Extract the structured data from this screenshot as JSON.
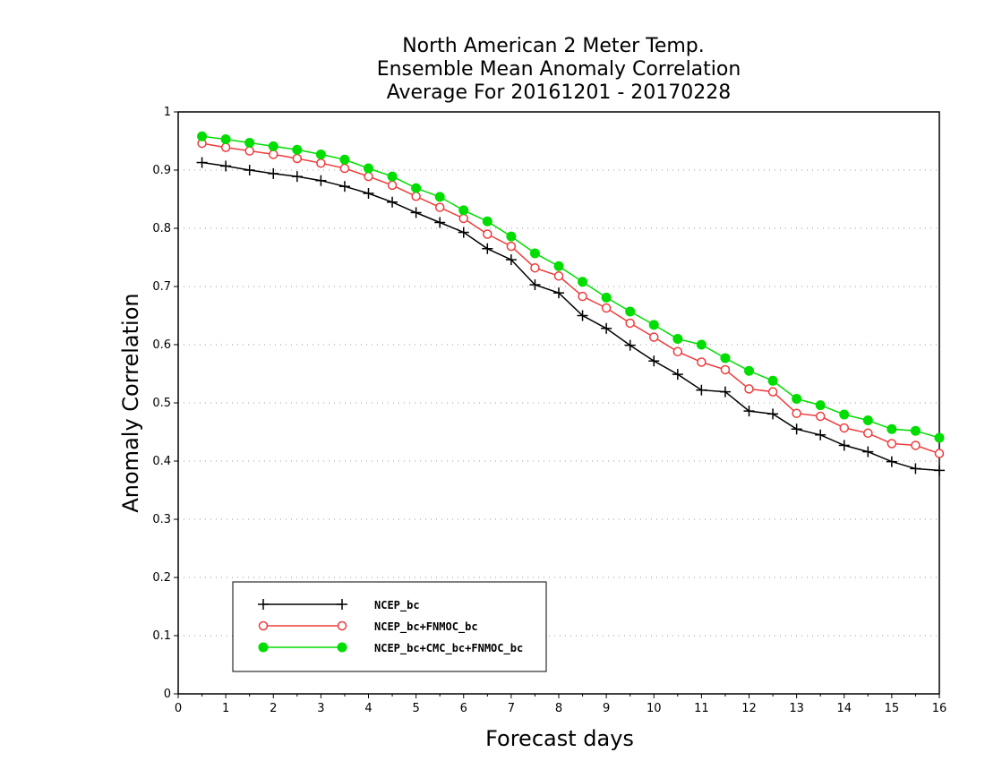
{
  "chart_data": {
    "type": "line",
    "title_lines": [
      "North American 2 Meter Temp.",
      "Ensemble Mean Anomaly Correlation",
      "Average For 20161201 - 20170228"
    ],
    "xlabel": "Forecast days",
    "ylabel": "Anomaly Correlation",
    "xlim": [
      0,
      16
    ],
    "ylim": [
      0,
      1
    ],
    "x_ticks": [
      "0",
      "1",
      "2",
      "3",
      "4",
      "5",
      "6",
      "7",
      "8",
      "9",
      "10",
      "11",
      "12",
      "13",
      "14",
      "15",
      "16"
    ],
    "y_ticks": [
      "0",
      "0.1",
      "0.2",
      "0.3",
      "0.4",
      "0.5",
      "0.6",
      "0.7",
      "0.8",
      "0.9",
      "1"
    ],
    "grid": "horizontal dotted",
    "legend_position": "bottom-left",
    "x": [
      0.5,
      1,
      1.5,
      2,
      2.5,
      3,
      3.5,
      4,
      4.5,
      5,
      5.5,
      6,
      6.5,
      7,
      7.5,
      8,
      8.5,
      9,
      9.5,
      10,
      10.5,
      11,
      11.5,
      12,
      12.5,
      13,
      13.5,
      14,
      14.5,
      15,
      15.5,
      16
    ],
    "series": [
      {
        "name": "NCEP_bc",
        "color": "#000000",
        "marker": "plus",
        "values": [
          0.913,
          0.907,
          0.9,
          0.894,
          0.889,
          0.882,
          0.872,
          0.86,
          0.845,
          0.827,
          0.81,
          0.793,
          0.765,
          0.746,
          0.703,
          0.689,
          0.65,
          0.628,
          0.599,
          0.572,
          0.549,
          0.522,
          0.519,
          0.486,
          0.481,
          0.455,
          0.445,
          0.427,
          0.416,
          0.399,
          0.387,
          0.384
        ]
      },
      {
        "name": "NCEP_bc+FNMOC_bc",
        "color": "#ee3b3b",
        "marker": "open-circle",
        "values": [
          0.946,
          0.939,
          0.933,
          0.927,
          0.92,
          0.912,
          0.903,
          0.889,
          0.874,
          0.855,
          0.836,
          0.817,
          0.79,
          0.769,
          0.732,
          0.718,
          0.683,
          0.663,
          0.637,
          0.613,
          0.588,
          0.57,
          0.557,
          0.524,
          0.519,
          0.482,
          0.477,
          0.457,
          0.448,
          0.43,
          0.427,
          0.413
        ]
      },
      {
        "name": "NCEP_bc+CMC_bc+FNMOC_bc",
        "color": "#00dd00",
        "marker": "filled-circle",
        "values": [
          0.958,
          0.953,
          0.947,
          0.941,
          0.935,
          0.927,
          0.918,
          0.903,
          0.889,
          0.869,
          0.854,
          0.831,
          0.812,
          0.786,
          0.757,
          0.735,
          0.708,
          0.681,
          0.657,
          0.634,
          0.61,
          0.6,
          0.577,
          0.555,
          0.538,
          0.507,
          0.496,
          0.48,
          0.47,
          0.455,
          0.452,
          0.44
        ]
      }
    ]
  }
}
